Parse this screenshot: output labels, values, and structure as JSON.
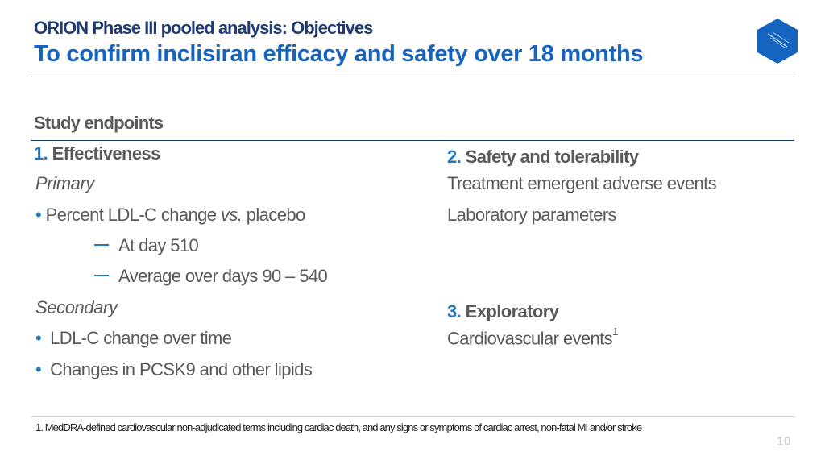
{
  "header": {
    "kicker": "ORION Phase III pooled analysis: Objectives",
    "title": "To confirm inclisiran efficacy and safety over 18 months",
    "logo_icon": "brand-hexagon-icon",
    "logo_color": "#1565c0"
  },
  "section_heading": "Study endpoints",
  "left_column": {
    "effectiveness": {
      "number": "1.",
      "label": "Effectiveness"
    },
    "primary_label": "Primary",
    "primary_bullet": {
      "text": "Percent LDL-C change ",
      "italic": "vs.",
      "text_after": " placebo"
    },
    "primary_subitems": [
      "At day 510",
      "Average over days 90 – 540"
    ],
    "secondary_label": "Secondary",
    "secondary_bullets": [
      "LDL-C change over time",
      "Changes in PCSK9 and other lipids"
    ]
  },
  "right_column": {
    "safety": {
      "number": "2.",
      "label": "Safety and tolerability",
      "items": [
        "Treatment emergent adverse events",
        "Laboratory parameters"
      ]
    },
    "exploratory": {
      "number": "3.",
      "label": "Exploratory",
      "item": "Cardiovascular events",
      "item_sup": "1"
    }
  },
  "footnote": "1. MedDRA-defined cardiovascular non-adjudicated terms including cardiac death, and any signs or symptoms of cardiac arrest, non-fatal MI and/or stroke",
  "page_number": "10",
  "colors": {
    "accent_blue": "#1565c0",
    "dark_navy": "#1f3b73",
    "number_blue": "#1e78c2",
    "body_gray": "#595959"
  }
}
